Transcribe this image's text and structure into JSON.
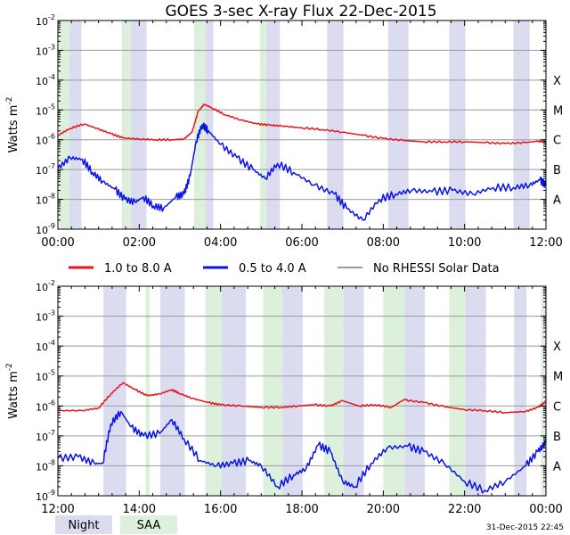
{
  "title": "GOES 3-sec X-ray Flux   22-Dec-2015",
  "timestamp": "31-Dec-2015 22:45",
  "colors": {
    "long_channel": "#e8141e",
    "short_channel": "#0a14e6",
    "no_rhessi": "#9a9a9a",
    "night_band": "#dcdcf0",
    "saa_band": "#dcf0dc"
  },
  "legend": [
    {
      "label": "1.0 to 8.0 A",
      "color": "#e8141e"
    },
    {
      "label": "0.5 to 4.0 A",
      "color": "#0a14e6"
    },
    {
      "label": "No RHESSI Solar Data",
      "color": "#9a9a9a"
    }
  ],
  "bottom_legend": {
    "night_label": "Night",
    "saa_label": "SAA"
  },
  "chart_data": [
    {
      "type": "line",
      "panel": "top",
      "xlabel": "",
      "ylabel": "Watts m^-2",
      "x_range_hours": [
        0,
        12
      ],
      "ylim": [
        1e-09,
        0.01
      ],
      "yscale": "log",
      "grid": true,
      "x_ticks": [
        "00:00",
        "02:00",
        "04:00",
        "06:00",
        "08:00",
        "10:00",
        "12:00"
      ],
      "y_ticks": [
        {
          "base": "10",
          "exp": "-2"
        },
        {
          "base": "10",
          "exp": "-3"
        },
        {
          "base": "10",
          "exp": "-4"
        },
        {
          "base": "10",
          "exp": "-5"
        },
        {
          "base": "10",
          "exp": "-6"
        },
        {
          "base": "10",
          "exp": "-7"
        },
        {
          "base": "10",
          "exp": "-8"
        },
        {
          "base": "10",
          "exp": "-9"
        }
      ],
      "flare_classes": [
        "X",
        "M",
        "C",
        "B",
        "A"
      ],
      "night_bands": [
        [
          0.28,
          0.58
        ],
        [
          1.58,
          2.18
        ],
        [
          3.62,
          3.82
        ],
        [
          5.12,
          5.46
        ],
        [
          6.62,
          7.02
        ],
        [
          8.12,
          8.62
        ],
        [
          9.62,
          10.02
        ],
        [
          11.2,
          11.6
        ]
      ],
      "saa_bands": [
        [
          0.03,
          0.28
        ],
        [
          1.6,
          1.8
        ],
        [
          3.35,
          3.62
        ],
        [
          4.97,
          5.12
        ]
      ],
      "series": [
        {
          "name": "1.0 to 8.0 A",
          "color": "#e8141e",
          "points": [
            [
              0,
              1.4e-06
            ],
            [
              0.3,
              2.4e-06
            ],
            [
              0.65,
              3.4e-06
            ],
            [
              0.95,
              2.4e-06
            ],
            [
              1.3,
              1.6e-06
            ],
            [
              1.6,
              1.15e-06
            ],
            [
              2.0,
              1.05e-06
            ],
            [
              2.4,
              1e-06
            ],
            [
              2.8,
              1e-06
            ],
            [
              3.1,
              1.05e-06
            ],
            [
              3.3,
              1.8e-06
            ],
            [
              3.45,
              9e-06
            ],
            [
              3.6,
              1.55e-05
            ],
            [
              3.8,
              1.15e-05
            ],
            [
              4.1,
              7e-06
            ],
            [
              4.5,
              4.6e-06
            ],
            [
              4.9,
              3.4e-06
            ],
            [
              5.2,
              3.1e-06
            ],
            [
              5.5,
              2.9e-06
            ],
            [
              6.0,
              2.5e-06
            ],
            [
              6.5,
              2.2e-06
            ],
            [
              7.0,
              1.8e-06
            ],
            [
              7.5,
              1.4e-06
            ],
            [
              8.0,
              1.1e-06
            ],
            [
              8.5,
              9.5e-07
            ],
            [
              9.0,
              8.5e-07
            ],
            [
              9.5,
              8.5e-07
            ],
            [
              10.0,
              8.5e-07
            ],
            [
              10.5,
              8e-07
            ],
            [
              11.0,
              7.5e-07
            ],
            [
              11.5,
              8e-07
            ],
            [
              11.8,
              9e-07
            ],
            [
              12,
              8.5e-07
            ]
          ]
        },
        {
          "name": "0.5 to 4.0 A",
          "color": "#0a14e6",
          "points": [
            [
              0,
              1.1e-07
            ],
            [
              0.3,
              2.5e-07
            ],
            [
              0.6,
              2.2e-07
            ],
            [
              0.85,
              8e-08
            ],
            [
              1.1,
              4e-08
            ],
            [
              1.4,
              2.2e-08
            ],
            [
              1.65,
              1e-08
            ],
            [
              1.9,
              8e-09
            ],
            [
              2.1,
              1.2e-08
            ],
            [
              2.35,
              6e-09
            ],
            [
              2.6,
              5e-09
            ],
            [
              2.9,
              1.2e-08
            ],
            [
              3.1,
              1.5e-08
            ],
            [
              3.25,
              6e-08
            ],
            [
              3.4,
              9e-07
            ],
            [
              3.55,
              3.2e-06
            ],
            [
              3.7,
              2e-06
            ],
            [
              4.0,
              7e-07
            ],
            [
              4.4,
              2.5e-07
            ],
            [
              4.8,
              1e-07
            ],
            [
              5.1,
              5e-08
            ],
            [
              5.4,
              1.6e-07
            ],
            [
              5.8,
              8e-08
            ],
            [
              6.3,
              3e-08
            ],
            [
              6.8,
              1.5e-08
            ],
            [
              7.1,
              5e-09
            ],
            [
              7.5,
              2e-09
            ],
            [
              7.9,
              1e-08
            ],
            [
              8.3,
              1.5e-08
            ],
            [
              8.7,
              2e-08
            ],
            [
              9.2,
              1.8e-08
            ],
            [
              9.7,
              2e-08
            ],
            [
              10.2,
              1.5e-08
            ],
            [
              10.7,
              2.5e-08
            ],
            [
              11.2,
              2.5e-08
            ],
            [
              11.6,
              3e-08
            ],
            [
              11.85,
              4.5e-08
            ],
            [
              12,
              3e-08
            ]
          ]
        }
      ]
    },
    {
      "type": "line",
      "panel": "bottom",
      "xlabel": "",
      "ylabel": "Watts m^-2",
      "x_range_hours": [
        12,
        24
      ],
      "ylim": [
        1e-09,
        0.01
      ],
      "yscale": "log",
      "grid": true,
      "x_ticks": [
        "12:00",
        "14:00",
        "16:00",
        "18:00",
        "20:00",
        "22:00",
        "00:00"
      ],
      "y_ticks": [
        {
          "base": "10",
          "exp": "-2"
        },
        {
          "base": "10",
          "exp": "-3"
        },
        {
          "base": "10",
          "exp": "-4"
        },
        {
          "base": "10",
          "exp": "-5"
        },
        {
          "base": "10",
          "exp": "-6"
        },
        {
          "base": "10",
          "exp": "-7"
        },
        {
          "base": "10",
          "exp": "-8"
        },
        {
          "base": "10",
          "exp": "-9"
        }
      ],
      "flare_classes": [
        "X",
        "M",
        "C",
        "B",
        "A"
      ],
      "night_bands": [
        [
          13.12,
          13.68
        ],
        [
          14.52,
          15.12
        ],
        [
          16.02,
          16.62
        ],
        [
          17.52,
          18.02
        ],
        [
          19.02,
          19.52
        ],
        [
          20.52,
          21.02
        ],
        [
          22.02,
          22.52
        ],
        [
          23.22,
          23.52
        ]
      ],
      "saa_bands": [
        [
          14.16,
          14.26
        ],
        [
          15.62,
          16.02
        ],
        [
          17.05,
          17.52
        ],
        [
          18.55,
          19.02
        ],
        [
          20.0,
          20.52
        ],
        [
          21.62,
          22.02
        ],
        [
          23.88,
          24.0
        ]
      ],
      "series": [
        {
          "name": "1.0 to 8.0 A",
          "color": "#e8141e",
          "points": [
            [
              12,
              7e-07
            ],
            [
              12.6,
              7e-07
            ],
            [
              13.0,
              8.5e-07
            ],
            [
              13.3,
              2.5e-06
            ],
            [
              13.6,
              6e-06
            ],
            [
              13.9,
              3.5e-06
            ],
            [
              14.2,
              2.2e-06
            ],
            [
              14.5,
              2.5e-06
            ],
            [
              14.8,
              3.5e-06
            ],
            [
              15.0,
              2.6e-06
            ],
            [
              15.3,
              1.8e-06
            ],
            [
              15.7,
              1.3e-06
            ],
            [
              16.0,
              1.1e-06
            ],
            [
              16.5,
              1e-06
            ],
            [
              17.0,
              9e-07
            ],
            [
              17.5,
              9e-07
            ],
            [
              17.9,
              1e-06
            ],
            [
              18.3,
              1.1e-06
            ],
            [
              18.7,
              1e-06
            ],
            [
              19.0,
              1.5e-06
            ],
            [
              19.4,
              1e-06
            ],
            [
              19.8,
              1.1e-06
            ],
            [
              20.2,
              9e-07
            ],
            [
              20.5,
              1.6e-06
            ],
            [
              21.0,
              1.3e-06
            ],
            [
              21.5,
              9.5e-07
            ],
            [
              22.0,
              7.5e-07
            ],
            [
              22.5,
              7e-07
            ],
            [
              23.0,
              6e-07
            ],
            [
              23.5,
              6.5e-07
            ],
            [
              23.8,
              9e-07
            ],
            [
              24,
              1.4e-06
            ]
          ]
        },
        {
          "name": "0.5 to 4.0 A",
          "color": "#0a14e6",
          "points": [
            [
              12,
              1.8e-08
            ],
            [
              12.5,
              2e-08
            ],
            [
              12.9,
              1.2e-08
            ],
            [
              13.1,
              1.2e-08
            ],
            [
              13.3,
              2.5e-07
            ],
            [
              13.55,
              6.5e-07
            ],
            [
              13.8,
              2e-07
            ],
            [
              14.1,
              1e-07
            ],
            [
              14.5,
              1.2e-07
            ],
            [
              14.8,
              3.5e-07
            ],
            [
              15.1,
              8e-08
            ],
            [
              15.5,
              1.5e-08
            ],
            [
              15.9,
              1e-08
            ],
            [
              16.3,
              1.2e-08
            ],
            [
              16.7,
              1.5e-08
            ],
            [
              17.0,
              1e-08
            ],
            [
              17.4,
              2e-09
            ],
            [
              17.8,
              5e-09
            ],
            [
              18.1,
              8e-09
            ],
            [
              18.4,
              5e-08
            ],
            [
              18.7,
              3e-08
            ],
            [
              19.0,
              3e-09
            ],
            [
              19.3,
              2e-09
            ],
            [
              19.7,
              1.2e-08
            ],
            [
              20.1,
              4e-08
            ],
            [
              20.6,
              4.5e-08
            ],
            [
              21.0,
              3e-08
            ],
            [
              21.5,
              1.2e-08
            ],
            [
              22.0,
              3e-09
            ],
            [
              22.5,
              1.5e-09
            ],
            [
              23.0,
              3e-09
            ],
            [
              23.5,
              1e-08
            ],
            [
              23.8,
              3e-08
            ],
            [
              24,
              6e-08
            ]
          ]
        }
      ]
    }
  ]
}
